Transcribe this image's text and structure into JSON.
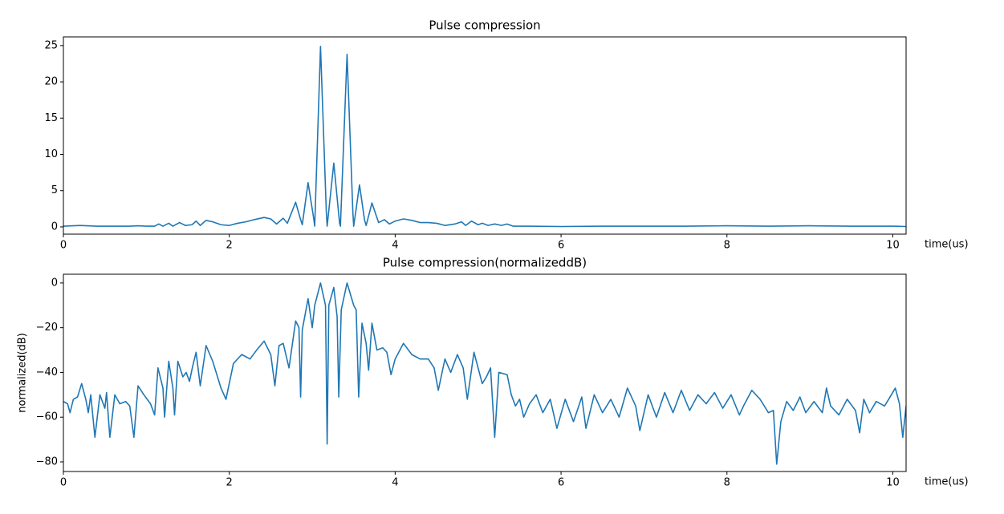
{
  "chart_data": [
    {
      "type": "line",
      "title": "Pulse compression",
      "xlabel": "time(us)",
      "xlim": [
        0,
        10.16
      ],
      "ylim": [
        -1.0,
        26.2
      ],
      "xticks": [
        0,
        2,
        4,
        6,
        8,
        10
      ],
      "yticks": [
        0,
        5,
        10,
        15,
        20,
        25
      ],
      "x": [
        0,
        0.2,
        0.4,
        0.6,
        0.8,
        0.9,
        1.0,
        1.1,
        1.15,
        1.2,
        1.27,
        1.32,
        1.4,
        1.47,
        1.55,
        1.6,
        1.65,
        1.72,
        1.8,
        1.9,
        2.0,
        2.1,
        2.2,
        2.3,
        2.42,
        2.5,
        2.57,
        2.65,
        2.7,
        2.8,
        2.86,
        2.88,
        2.95,
        3.02,
        3.03,
        3.1,
        3.17,
        3.18,
        3.26,
        3.33,
        3.34,
        3.42,
        3.49,
        3.5,
        3.57,
        3.63,
        3.65,
        3.72,
        3.8,
        3.87,
        3.93,
        4.0,
        4.1,
        4.2,
        4.3,
        4.4,
        4.5,
        4.6,
        4.72,
        4.8,
        4.85,
        4.92,
        5.0,
        5.05,
        5.12,
        5.2,
        5.28,
        5.35,
        5.42,
        5.6,
        6,
        6.5,
        7,
        7.5,
        8,
        8.5,
        9,
        9.5,
        10,
        10.16
      ],
      "series": [
        {
          "color": "#1f77b4",
          "values": [
            0.1,
            0.2,
            0.1,
            0.1,
            0.1,
            0.15,
            0.1,
            0.1,
            0.4,
            0.1,
            0.5,
            0.1,
            0.6,
            0.2,
            0.3,
            0.8,
            0.2,
            0.9,
            0.7,
            0.3,
            0.2,
            0.5,
            0.7,
            1.0,
            1.3,
            1.1,
            0.4,
            1.2,
            0.5,
            3.4,
            1.0,
            0.3,
            6.1,
            1.0,
            0.1,
            24.9,
            2.0,
            0.1,
            8.8,
            0.5,
            0.1,
            23.8,
            2,
            0.1,
            5.8,
            1.0,
            0.2,
            3.3,
            0.6,
            1.0,
            0.4,
            0.8,
            1.1,
            0.9,
            0.6,
            0.6,
            0.5,
            0.2,
            0.4,
            0.7,
            0.2,
            0.8,
            0.3,
            0.5,
            0.2,
            0.4,
            0.2,
            0.4,
            0.1,
            0.1,
            0.05,
            0.1,
            0.1,
            0.1,
            0.15,
            0.1,
            0.15,
            0.1,
            0.1,
            0.05
          ]
        }
      ]
    },
    {
      "type": "line",
      "title": "Pulse compression(normalizeddB)",
      "xlabel": "time(us)",
      "ylabel": "normalized(dB)",
      "xlim": [
        0,
        10.16
      ],
      "ylim": [
        -84.3,
        3.9
      ],
      "xticks": [
        0,
        2,
        4,
        6,
        8,
        10
      ],
      "yticks": [
        {
          "value": -80,
          "label": "−80"
        },
        {
          "value": -60,
          "label": "−60"
        },
        {
          "value": -40,
          "label": "−40"
        },
        {
          "value": -20,
          "label": "−20"
        },
        0
      ],
      "x": [
        0,
        0.05,
        0.08,
        0.12,
        0.17,
        0.22,
        0.27,
        0.3,
        0.33,
        0.38,
        0.44,
        0.5,
        0.52,
        0.56,
        0.62,
        0.68,
        0.75,
        0.8,
        0.85,
        0.9,
        0.97,
        1.05,
        1.1,
        1.14,
        1.2,
        1.22,
        1.27,
        1.32,
        1.34,
        1.38,
        1.44,
        1.48,
        1.52,
        1.56,
        1.6,
        1.65,
        1.72,
        1.8,
        1.9,
        1.96,
        2.05,
        2.15,
        2.25,
        2.33,
        2.42,
        2.5,
        2.55,
        2.6,
        2.65,
        2.72,
        2.8,
        2.84,
        2.86,
        2.88,
        2.95,
        3.0,
        3.03,
        3.1,
        3.16,
        3.18,
        3.2,
        3.26,
        3.3,
        3.32,
        3.35,
        3.42,
        3.5,
        3.53,
        3.56,
        3.6,
        3.65,
        3.68,
        3.72,
        3.78,
        3.85,
        3.9,
        3.95,
        4.0,
        4.1,
        4.2,
        4.3,
        4.4,
        4.47,
        4.52,
        4.6,
        4.67,
        4.75,
        4.82,
        4.87,
        4.95,
        5.0,
        5.05,
        5.1,
        5.15,
        5.2,
        5.25,
        5.35,
        5.4,
        5.45,
        5.5,
        5.55,
        5.62,
        5.7,
        5.78,
        5.87,
        5.95,
        6.05,
        6.15,
        6.25,
        6.3,
        6.4,
        6.5,
        6.6,
        6.7,
        6.8,
        6.9,
        6.95,
        7.05,
        7.15,
        7.25,
        7.35,
        7.45,
        7.55,
        7.65,
        7.75,
        7.85,
        7.95,
        8.05,
        8.15,
        8.2,
        8.3,
        8.4,
        8.5,
        8.56,
        8.6,
        8.65,
        8.72,
        8.8,
        8.88,
        8.95,
        9.05,
        9.15,
        9.2,
        9.25,
        9.35,
        9.45,
        9.55,
        9.6,
        9.65,
        9.72,
        9.8,
        9.9,
        9.95,
        10.03,
        10.08,
        10.12,
        10.16
      ],
      "series": [
        {
          "color": "#1f77b4",
          "values": [
            -53,
            -54,
            -58,
            -52,
            -51,
            -45,
            -52,
            -58,
            -50,
            -69,
            -50,
            -56,
            -49,
            -69,
            -50,
            -54,
            -53,
            -55,
            -69,
            -46,
            -50,
            -54,
            -59,
            -38,
            -47,
            -60,
            -35,
            -47,
            -59,
            -35,
            -42,
            -40,
            -44,
            -37,
            -31,
            -46,
            -28,
            -35,
            -47,
            -52,
            -36,
            -32,
            -34,
            -30,
            -26,
            -32,
            -46,
            -28,
            -27,
            -38,
            -17,
            -20,
            -51,
            -21,
            -7,
            -20,
            -10,
            0,
            -10,
            -72,
            -10,
            -2,
            -15,
            -51,
            -12,
            0,
            -10,
            -12,
            -51,
            -18,
            -27,
            -39,
            -18,
            -30,
            -29,
            -31,
            -41,
            -34,
            -27,
            -32,
            -34,
            -34,
            -38,
            -48,
            -34,
            -40,
            -32,
            -38,
            -52,
            -31,
            -38,
            -45,
            -42,
            -38,
            -69,
            -40,
            -41,
            -50,
            -55,
            -52,
            -60,
            -54,
            -50,
            -58,
            -52,
            -65,
            -52,
            -62,
            -51,
            -65,
            -50,
            -58,
            -52,
            -60,
            -47,
            -55,
            -66,
            -50,
            -60,
            -49,
            -58,
            -48,
            -57,
            -50,
            -54,
            -49,
            -56,
            -50,
            -59,
            -55,
            -48,
            -52,
            -58,
            -57,
            -81,
            -62,
            -53,
            -57,
            -51,
            -58,
            -53,
            -58,
            -47,
            -55,
            -59,
            -52,
            -57,
            -67,
            -52,
            -58,
            -53,
            -55,
            -52,
            -47,
            -54,
            -69,
            -55
          ]
        }
      ]
    }
  ]
}
